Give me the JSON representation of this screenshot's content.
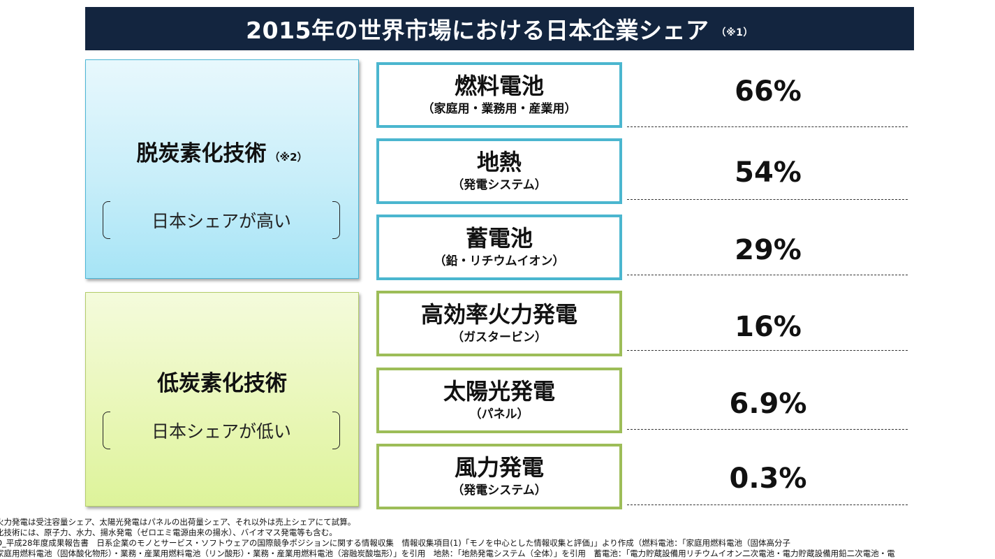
{
  "title": {
    "text": "2015年の世界市場における日本企業シェア",
    "note": "（※1）"
  },
  "groups": {
    "high": {
      "title": "脱炭素化技術",
      "note": "（※2）",
      "caption": "日本シェアが高い"
    },
    "low": {
      "title": "低炭素化技術",
      "caption": "日本シェアが低い"
    }
  },
  "rows": [
    {
      "name": "燃料電池",
      "sub": "（家庭用・業務用・産業用）",
      "share": "66%"
    },
    {
      "name": "地熱",
      "sub": "（発電システム）",
      "share": "54%"
    },
    {
      "name": "蓄電池",
      "sub": "（鉛・リチウムイオン）",
      "share": "29%"
    },
    {
      "name": "高効率火力発電",
      "sub": "（ガスタービン）",
      "share": "16%"
    },
    {
      "name": "太陽光発電",
      "sub": "（パネル）",
      "share": "6.9%"
    },
    {
      "name": "風力発電",
      "sub": "（発電システム）",
      "share": "0.3%"
    }
  ],
  "footnotes": [
    "火力発電は受注容量シェア、太陽光発電はパネルの出荷量シェア、それ以外は売上シェアにて試算。",
    "化技術には、原子力、水力、揚水発電（ゼロエミ電源由来の揚水）、バイオマス発電等も含む。",
    "O_平成28年度成果報告書　日系企業のモノとサービス・ソフトウェアの国際競争ポジションに関する情報収集　情報収集項目(1)「モノを中心とした情報収集と評価」」より作成（燃料電池：「家庭用燃料電池（固体高分子",
    "家庭用燃料電池（固体酸化物形）・業務・産業用燃料電池（リン酸形）・業務・産業用燃料電池（溶融炭酸塩形）」を引用　地熱：「地熱発電システム（全体）」を引用　蓄電池：「電力貯蔵設備用リチウムイオン二次電池・電力貯蔵設備用鉛二次電池・電"
  ]
}
